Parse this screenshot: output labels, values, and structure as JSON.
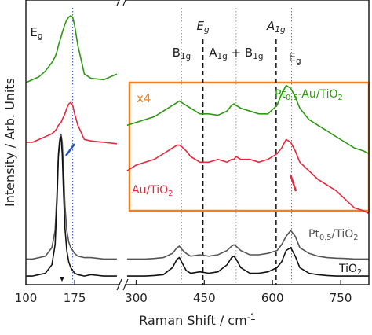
{
  "chart_data": {
    "type": "line",
    "xlabel": "Raman Shift / cm-1",
    "ylabel": "Intensity / Arb. Units",
    "xlim": [
      100,
      812
    ],
    "xbreak": [
      245,
      275
    ],
    "ylim": [
      0,
      100
    ],
    "xticks": [
      100,
      175,
      300,
      450,
      600,
      750
    ],
    "inset_label": "x4",
    "x": [
      100,
      110,
      120,
      130,
      140,
      145,
      148,
      150,
      152,
      154,
      156,
      158,
      160,
      163,
      166,
      169,
      172,
      175,
      180,
      190,
      200,
      220,
      240,
      260,
      280,
      300,
      320,
      340,
      360,
      380,
      390,
      395,
      400,
      410,
      420,
      440,
      460,
      480,
      500,
      510,
      515,
      520,
      530,
      550,
      570,
      590,
      610,
      620,
      630,
      640,
      650,
      660,
      680,
      700,
      720,
      740,
      760,
      780,
      800,
      812
    ],
    "series": [
      {
        "name": "Pt0.5-Au/TiO2",
        "color": "#2e9a12",
        "values": [
          71,
          72,
          73,
          75,
          78,
          80,
          82,
          84,
          85.5,
          87,
          88.5,
          90,
          91.5,
          93,
          94,
          94.5,
          94,
          91,
          84,
          74,
          72.5,
          72,
          74,
          null,
          56,
          57,
          58,
          59,
          61,
          63,
          64,
          64.5,
          64,
          63,
          62,
          60,
          60,
          59.5,
          61,
          63,
          63.5,
          63,
          62,
          61,
          60,
          60,
          63,
          67,
          70,
          69,
          66,
          62,
          58,
          56,
          54,
          52,
          50,
          48,
          47,
          46
        ]
      },
      {
        "name": "Au/TiO2",
        "color": "#e8283c",
        "values": [
          50,
          50,
          51,
          52,
          53,
          54,
          55,
          56,
          56.5,
          57,
          58,
          59,
          60,
          62,
          63.5,
          64,
          63,
          60,
          56,
          51,
          50.5,
          50,
          49.5,
          null,
          40,
          42,
          43,
          44,
          46,
          48,
          49,
          49,
          48.5,
          47,
          45,
          43,
          43,
          44,
          43,
          44,
          44,
          45,
          44,
          44,
          43,
          44,
          46,
          48,
          51,
          50,
          47,
          43,
          40,
          37,
          35,
          33,
          30,
          27,
          26,
          25
        ]
      },
      {
        "name": "Pt0.5/TiO2",
        "color": "#555555",
        "values": [
          9,
          9,
          9.5,
          10,
          13,
          19,
          33,
          46,
          51,
          53,
          50,
          40,
          28,
          19,
          15,
          13,
          12,
          11,
          10,
          9.5,
          9.5,
          9,
          9,
          null,
          9,
          9,
          9,
          9.2,
          9.5,
          11,
          13,
          13.5,
          12.5,
          11,
          10,
          10.5,
          10,
          10.5,
          12,
          13.5,
          14,
          13.5,
          12,
          10.5,
          10.5,
          11,
          12,
          14,
          17,
          19,
          17,
          13,
          11,
          10,
          9.5,
          9.3,
          9.2,
          9,
          9,
          9
        ]
      },
      {
        "name": "TiO2",
        "color": "#111111",
        "values": [
          3,
          3,
          3.5,
          4,
          7,
          14,
          30,
          45,
          50,
          52,
          46,
          32,
          20,
          12,
          8,
          6,
          5,
          4,
          3.5,
          3,
          3.5,
          3,
          3,
          null,
          3,
          3,
          3,
          3.2,
          3.5,
          6,
          9,
          9.5,
          8,
          5,
          4,
          4.5,
          4,
          4.5,
          7,
          9.5,
          10,
          9,
          6,
          4,
          4,
          4.5,
          6,
          8,
          12,
          13,
          10,
          6,
          4,
          3.5,
          3.2,
          3,
          3,
          3,
          3,
          3
        ]
      }
    ],
    "markers": [
      {
        "x": 172,
        "label": "Eg",
        "style": "dotted",
        "color": "#3355cc"
      },
      {
        "x": 400,
        "label": "B1g",
        "style": "dotted",
        "color": "#999999"
      },
      {
        "x": 447,
        "label": "Eg",
        "style": "dashed",
        "color": "#111111"
      },
      {
        "x": 520,
        "label": "A1g + B1g",
        "style": "dotted",
        "color": "#999999"
      },
      {
        "x": 608,
        "label": "A1g",
        "style": "dashed",
        "color": "#111111"
      },
      {
        "x": 642,
        "label": "Eg",
        "style": "dotted",
        "color": "#cc4466"
      }
    ]
  }
}
